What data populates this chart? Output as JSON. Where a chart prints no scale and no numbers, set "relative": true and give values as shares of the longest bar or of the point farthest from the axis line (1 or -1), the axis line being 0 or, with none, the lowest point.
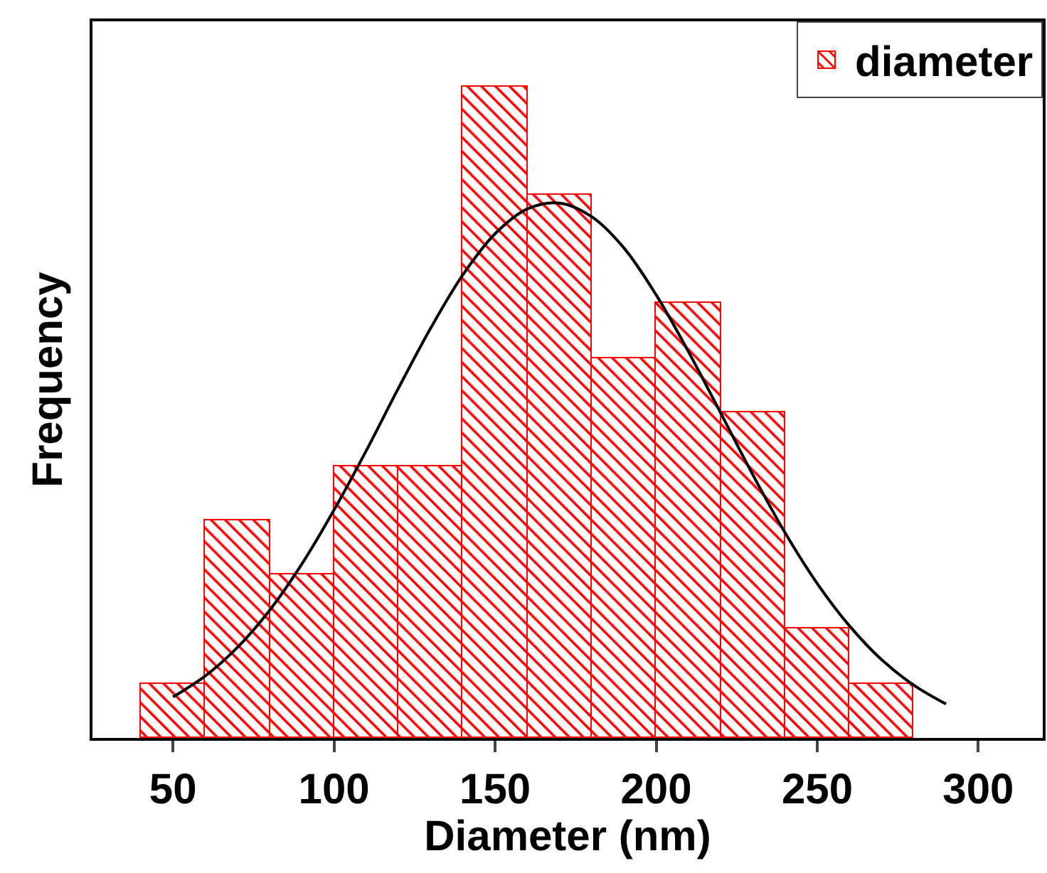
{
  "chart_data": {
    "type": "histogram",
    "xlabel": "Diameter (nm)",
    "ylabel": "Frequency",
    "relative": true,
    "bins": [
      40,
      60,
      80,
      100,
      120,
      140,
      160,
      180,
      200,
      220,
      240,
      260,
      280
    ],
    "xlim": [
      25,
      320
    ],
    "xticks": [
      50,
      100,
      150,
      200,
      250,
      300
    ],
    "grid": false,
    "legend": "top right",
    "series": [
      {
        "name": "diameter",
        "color": "#ff0000",
        "values": [
          0.083,
          0.333,
          0.25,
          0.417,
          0.417,
          1,
          0.833,
          0.583,
          0.667,
          0.5,
          0.167,
          0.083
        ]
      },
      {
        "type": "line",
        "color": "#000000",
        "marker": "none",
        "line_style": "solid",
        "x": [
          50,
          60,
          70,
          80,
          90,
          100,
          110,
          120,
          130,
          140,
          150,
          160,
          170,
          180,
          190,
          200,
          210,
          220,
          230,
          240,
          250,
          260,
          270,
          280,
          290
        ],
        "values": [
          0.063,
          0.095,
          0.139,
          0.196,
          0.267,
          0.35,
          0.441,
          0.537,
          0.629,
          0.711,
          0.774,
          0.812,
          0.821,
          0.8,
          0.752,
          0.68,
          0.593,
          0.499,
          0.404,
          0.315,
          0.237,
          0.172,
          0.12,
          0.081,
          0.052
        ]
      }
    ]
  }
}
